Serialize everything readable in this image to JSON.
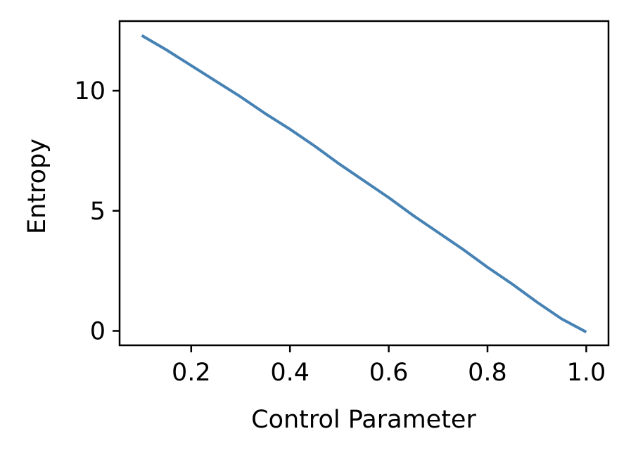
{
  "chart_data": {
    "type": "line",
    "title": "",
    "xlabel": "Control Parameter",
    "ylabel": "Entropy",
    "xlim": [
      0.055,
      1.045
    ],
    "ylim": [
      -0.6,
      12.9
    ],
    "xticks": [
      0.2,
      0.4,
      0.6,
      0.8,
      1.0
    ],
    "xtick_labels": [
      "0.2",
      "0.4",
      "0.6",
      "0.8",
      "1.0"
    ],
    "yticks": [
      0,
      5,
      10
    ],
    "ytick_labels": [
      "0",
      "5",
      "10"
    ],
    "grid": false,
    "legend": "none",
    "series": [
      {
        "color": "#4682b4",
        "x": [
          0.1,
          0.15,
          0.2,
          0.25,
          0.3,
          0.35,
          0.4,
          0.45,
          0.5,
          0.55,
          0.6,
          0.65,
          0.7,
          0.75,
          0.8,
          0.85,
          0.9,
          0.95,
          1.0
        ],
        "y": [
          12.3,
          11.7,
          11.05,
          10.4,
          9.75,
          9.05,
          8.4,
          7.7,
          6.95,
          6.25,
          5.55,
          4.8,
          4.1,
          3.4,
          2.65,
          1.95,
          1.2,
          0.5,
          -0.05
        ]
      }
    ]
  }
}
